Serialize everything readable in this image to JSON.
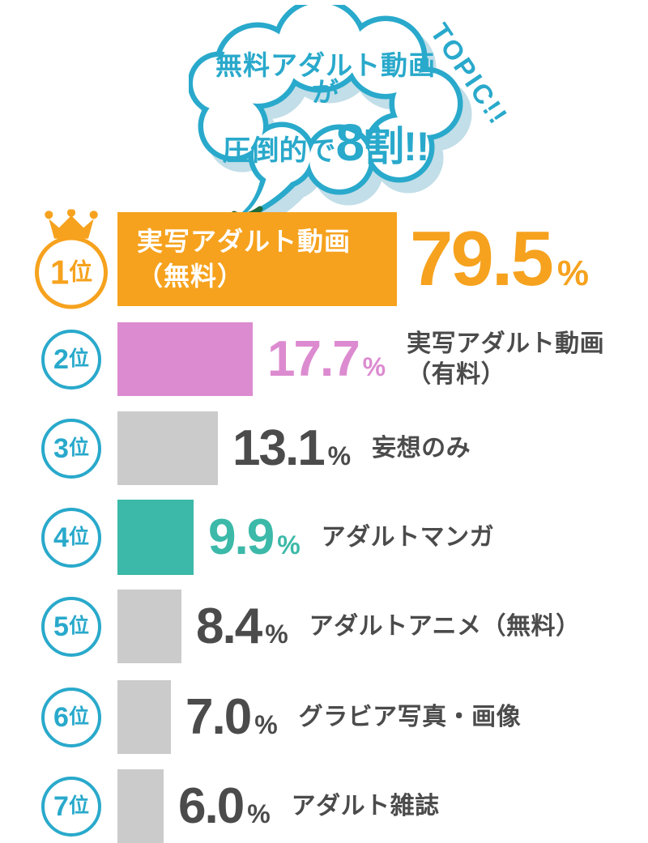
{
  "topic_label": "TOPIC!!",
  "bubble": {
    "line1": "無料アダルト動画が",
    "line2_normal": "圧倒的で",
    "line2_number": "8",
    "line2_rest": "割!!"
  },
  "colors": {
    "cyan": "#29A9CB",
    "orange": "#F6A21E",
    "pink": "#DC8BD0",
    "gray": "#CBCBCB",
    "teal": "#3CB9A8",
    "text_dark": "#4B4B4B",
    "bubble_shadow": "#C2DEE8",
    "tail_overlap_green": "#1E6B3C",
    "white": "#FFFFFF"
  },
  "chart_data": {
    "type": "bar",
    "orientation": "horizontal",
    "title": "無料アダルト動画が圧倒的で8割!!",
    "annotation": "TOPIC!!",
    "categories": [
      "実写アダルト動画（無料）",
      "実写アダルト動画（有料）",
      "妄想のみ",
      "アダルトマンガ",
      "アダルトアニメ（無料）",
      "グラビア写真・画像",
      "アダルト雑誌"
    ],
    "values": [
      79.5,
      17.7,
      13.1,
      9.9,
      8.4,
      7.0,
      6.0
    ],
    "unit": "%",
    "ranks": [
      "1位",
      "2位",
      "3位",
      "4位",
      "5位",
      "6位",
      "7位"
    ],
    "bar_colors": [
      "#F6A21E",
      "#DC8BD0",
      "#CBCBCB",
      "#3CB9A8",
      "#CBCBCB",
      "#CBCBCB",
      "#CBCBCB"
    ],
    "legend": false,
    "grid": false,
    "axis_labels_shown": false,
    "first_bar_length_capped": true
  },
  "ranking": [
    {
      "rank_number": "1",
      "rank_suffix": "位",
      "crown": true,
      "label_display": "実写アダルト動画\n（無料）",
      "label_in_bar": true,
      "value": "79.5",
      "unit": "%",
      "bar_color": "#F6A21E",
      "value_color": "#F6A21E",
      "label_color": "#FFFFFF"
    },
    {
      "rank_number": "2",
      "rank_suffix": "位",
      "crown": false,
      "label_display": "実写アダルト動画\n（有料）",
      "label_in_bar": false,
      "value": "17.7",
      "unit": "%",
      "bar_color": "#DC8BD0",
      "value_color": "#DC8BD0",
      "label_color": "#4B4B4B"
    },
    {
      "rank_number": "3",
      "rank_suffix": "位",
      "crown": false,
      "label_display": "妄想のみ",
      "label_in_bar": false,
      "value": "13.1",
      "unit": "%",
      "bar_color": "#CBCBCB",
      "value_color": "#4B4B4B",
      "label_color": "#4B4B4B"
    },
    {
      "rank_number": "4",
      "rank_suffix": "位",
      "crown": false,
      "label_display": "アダルトマンガ",
      "label_in_bar": false,
      "value": "9.9",
      "unit": "%",
      "bar_color": "#3CB9A8",
      "value_color": "#3CB9A8",
      "label_color": "#4B4B4B"
    },
    {
      "rank_number": "5",
      "rank_suffix": "位",
      "crown": false,
      "label_display": "アダルトアニメ（無料）",
      "label_in_bar": false,
      "value": "8.4",
      "unit": "%",
      "bar_color": "#CBCBCB",
      "value_color": "#4B4B4B",
      "label_color": "#4B4B4B"
    },
    {
      "rank_number": "6",
      "rank_suffix": "位",
      "crown": false,
      "label_display": "グラビア写真・画像",
      "label_in_bar": false,
      "value": "7.0",
      "unit": "%",
      "bar_color": "#CBCBCB",
      "value_color": "#4B4B4B",
      "label_color": "#4B4B4B"
    },
    {
      "rank_number": "7",
      "rank_suffix": "位",
      "crown": false,
      "label_display": "アダルト雑誌",
      "label_in_bar": false,
      "value": "6.0",
      "unit": "%",
      "bar_color": "#CBCBCB",
      "value_color": "#4B4B4B",
      "label_color": "#4B4B4B"
    }
  ]
}
